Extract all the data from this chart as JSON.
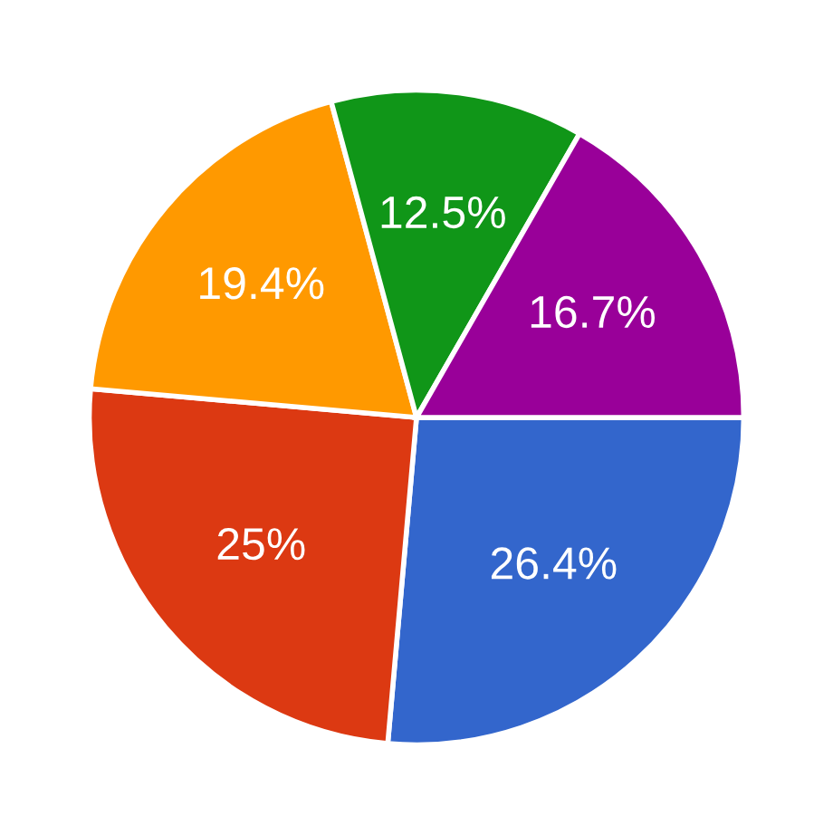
{
  "chart_data": {
    "type": "pie",
    "categories": [
      null,
      null,
      null,
      null,
      null
    ],
    "values": [
      26.4,
      25,
      19.4,
      12.5,
      16.7
    ],
    "value_labels": [
      "26.4%",
      "25%",
      "19.4%",
      "12.5%",
      "16.7%"
    ],
    "colors": [
      "#3366cc",
      "#dc3912",
      "#ff9900",
      "#109618",
      "#990099"
    ]
  }
}
